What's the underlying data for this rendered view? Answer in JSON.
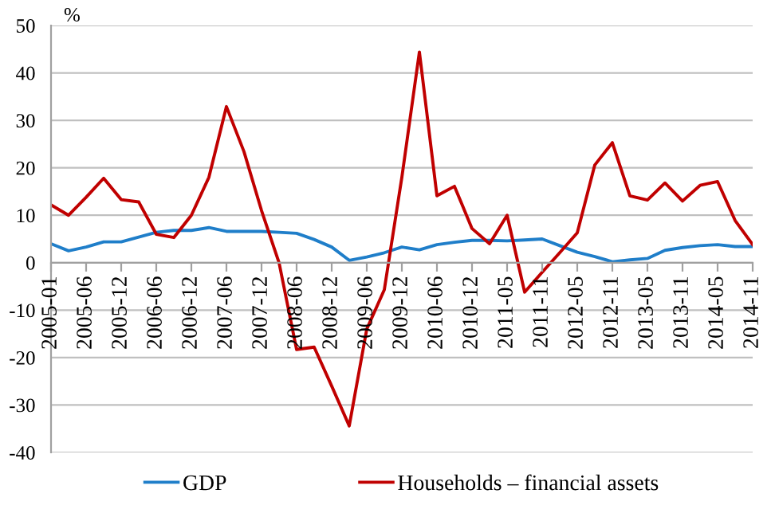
{
  "chart_data": {
    "type": "line",
    "ylabel": "%",
    "categories": [
      "2005-01",
      null,
      "2005-06",
      null,
      "2005-12",
      null,
      "2006-06",
      null,
      "2006-12",
      null,
      "2007-06",
      null,
      "2007-12",
      null,
      "2008-06",
      null,
      "2008-12",
      null,
      "2009-06",
      null,
      "2009-12",
      null,
      "2010-06",
      null,
      "2010-12",
      null,
      "2011-05",
      null,
      "2011-11",
      null,
      "2012-05",
      null,
      "2012-11",
      null,
      "2013-05",
      null,
      "2013-11",
      null,
      "2014-05",
      null,
      "2014-11"
    ],
    "series": [
      {
        "name": "GDP",
        "color": "#1f7ec9",
        "values": [
          4,
          2.5,
          3.3,
          4.4,
          4.4,
          5.4,
          6.4,
          6.8,
          6.8,
          7.4,
          6.6,
          6.6,
          6.6,
          6.4,
          6.2,
          4.9,
          3.3,
          0.5,
          1.2,
          2.1,
          3.3,
          2.7,
          3.8,
          4.3,
          4.7,
          4.7,
          4.6,
          4.8,
          5.0,
          3.6,
          2.2,
          1.3,
          0.2,
          0.6,
          0.9,
          2.6,
          3.2,
          3.6,
          3.8,
          3.4,
          3.4
        ]
      },
      {
        "name": "Households – financial assets",
        "color": "#c00000",
        "values": [
          12.2,
          10,
          13.8,
          17.8,
          13.3,
          12.8,
          6,
          5.3,
          10,
          18,
          32.9,
          23.4,
          11,
          0,
          -18.3,
          -17.8,
          -26,
          -34.4,
          -14,
          -5.7,
          18,
          44.4,
          14.1,
          16.1,
          7.2,
          4,
          10,
          -6.2,
          -2,
          2.1,
          6.3,
          20.6,
          25.3,
          14.1,
          13.2,
          16.8,
          13,
          16.3,
          17.1,
          8.9,
          3.8
        ]
      }
    ],
    "ylim": [
      -40,
      50
    ],
    "yticks": [
      -40,
      -30,
      -20,
      -10,
      0,
      10,
      20,
      30,
      40,
      50
    ],
    "grid": "y",
    "legend": "bottom",
    "marker": "none",
    "line_style": "solid"
  }
}
